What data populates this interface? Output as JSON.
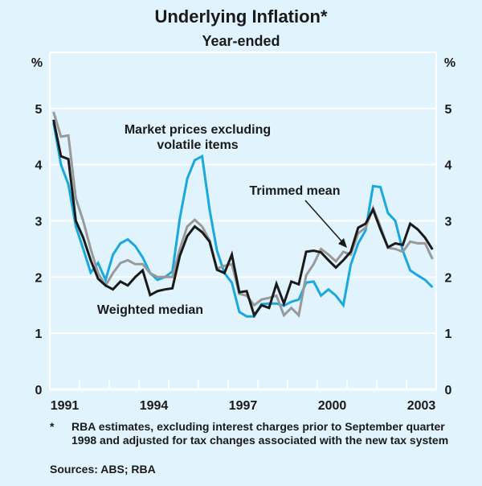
{
  "chart_data": {
    "type": "line",
    "title": "Underlying Inflation*",
    "subtitle": "Year-ended",
    "ylabel_left": "%",
    "ylabel_right": "%",
    "ylim": [
      0,
      6
    ],
    "yticks": [
      0,
      1,
      2,
      3,
      4,
      5
    ],
    "xlim": [
      1991,
      2004
    ],
    "xtick_labels": [
      "1991",
      "1994",
      "1997",
      "2000",
      "2003"
    ],
    "xtick_label_years": [
      1991,
      1994,
      1997,
      2000,
      2003
    ],
    "grid": true,
    "frequency": "quarterly",
    "start": "1991-Q1",
    "end": "2003-Q4",
    "series": [
      {
        "name": "Market prices excluding volatile items",
        "label_lines": [
          "Market prices excluding",
          "volatile items"
        ],
        "color": "#1aa8e0",
        "values": [
          4.75,
          4.0,
          3.65,
          2.9,
          2.5,
          2.08,
          2.25,
          1.95,
          2.4,
          2.6,
          2.67,
          2.55,
          2.35,
          2.07,
          1.95,
          2.0,
          2.1,
          3.05,
          3.75,
          4.08,
          4.15,
          3.2,
          2.47,
          2.07,
          1.9,
          1.38,
          1.3,
          1.3,
          1.52,
          1.53,
          1.53,
          1.49,
          1.56,
          1.6,
          1.9,
          1.92,
          1.67,
          1.78,
          1.67,
          1.5,
          2.22,
          2.6,
          2.83,
          3.62,
          3.6,
          3.14,
          3.0,
          2.47,
          2.12,
          2.03,
          1.95,
          1.82
        ]
      },
      {
        "name": "Trimmed mean",
        "label_lines": [
          "Trimmed mean"
        ],
        "color": "#999999",
        "values": [
          4.94,
          4.5,
          4.52,
          3.4,
          3.0,
          2.5,
          2.07,
          1.85,
          2.07,
          2.25,
          2.3,
          2.23,
          2.23,
          2.07,
          2.0,
          2.0,
          2.0,
          2.5,
          2.9,
          3.02,
          2.9,
          2.65,
          2.15,
          2.2,
          2.23,
          1.7,
          1.67,
          1.5,
          1.6,
          1.63,
          1.67,
          1.32,
          1.45,
          1.32,
          2.03,
          2.23,
          2.5,
          2.4,
          2.28,
          2.45,
          2.4,
          2.78,
          2.88,
          3.23,
          2.9,
          2.52,
          2.5,
          2.45,
          2.63,
          2.6,
          2.6,
          2.32
        ]
      },
      {
        "name": "Weighted median",
        "label_lines": [
          "Weighted median"
        ],
        "color": "#1a1a1a",
        "values": [
          4.8,
          4.15,
          4.1,
          3.0,
          2.7,
          2.3,
          1.97,
          1.85,
          1.78,
          1.92,
          1.85,
          2.0,
          2.12,
          1.68,
          1.75,
          1.78,
          1.8,
          2.38,
          2.73,
          2.9,
          2.8,
          2.63,
          2.13,
          2.07,
          2.4,
          1.73,
          1.75,
          1.32,
          1.5,
          1.45,
          1.88,
          1.53,
          1.92,
          1.87,
          2.45,
          2.47,
          2.44,
          2.3,
          2.17,
          2.3,
          2.45,
          2.88,
          2.95,
          3.2,
          2.85,
          2.53,
          2.6,
          2.57,
          2.95,
          2.85,
          2.7,
          2.49
        ]
      }
    ],
    "annotations": [
      {
        "text": "Trimmed mean",
        "arrow": true,
        "points_to_year": 2000.75,
        "points_to_value": 2.5
      }
    ]
  },
  "footnote": {
    "marker": "*",
    "text": "RBA estimates, excluding interest charges prior to September quarter 1998 and adjusted for tax changes associated with the new tax system"
  },
  "sources": "Sources: ABS; RBA"
}
